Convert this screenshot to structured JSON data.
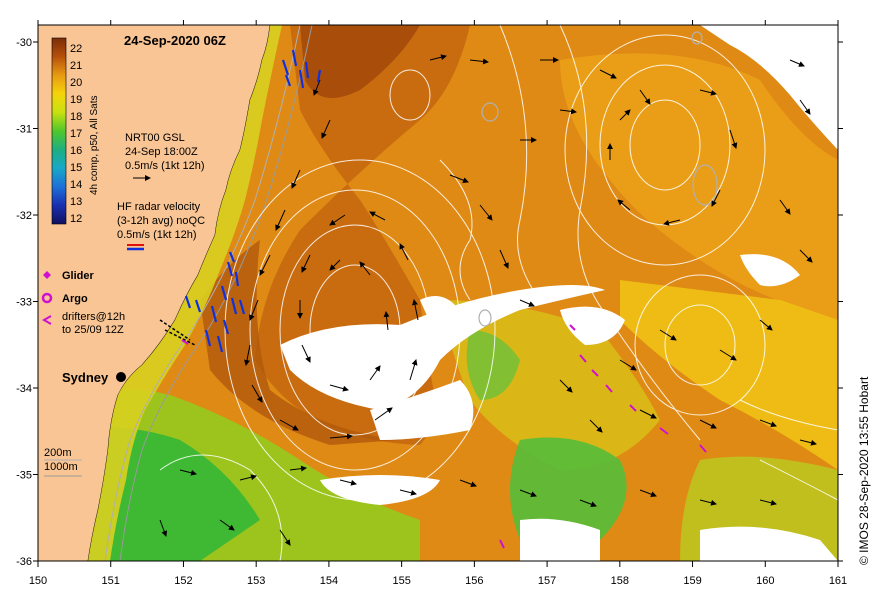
{
  "map": {
    "title": "24-Sep-2020 06Z",
    "credit": "© IMOS 28-Sep-2020 13:55 Hobart",
    "x_ticks": [
      "150",
      "151",
      "152",
      "153",
      "154",
      "155",
      "156",
      "157",
      "158",
      "159",
      "160",
      "161"
    ],
    "y_ticks": [
      "-30",
      "-31",
      "-32",
      "-33",
      "-34",
      "-35",
      "-36"
    ],
    "colorbar": {
      "title": "4h comp, p50, All Sats",
      "labels": [
        "22",
        "21",
        "20",
        "19",
        "18",
        "17",
        "16",
        "15",
        "14",
        "13",
        "12"
      ]
    },
    "legend": {
      "gsl_line1": "NRT00 GSL",
      "gsl_line2": "24-Sep 18:00Z",
      "gsl_line3": "0.5m/s (1kt 12h)",
      "hf_line1": "HF radar velocity",
      "hf_line2": "(3-12h avg) noQC",
      "hf_line3": "0.5m/s (1kt 12h)",
      "glider": "Glider",
      "argo": "Argo",
      "drifters_line1": "drifters@12h",
      "drifters_line2": "to 25/09 12Z",
      "depth200": "200m",
      "depth1000": "1000m"
    },
    "places": {
      "sydney": "Sydney"
    }
  }
}
